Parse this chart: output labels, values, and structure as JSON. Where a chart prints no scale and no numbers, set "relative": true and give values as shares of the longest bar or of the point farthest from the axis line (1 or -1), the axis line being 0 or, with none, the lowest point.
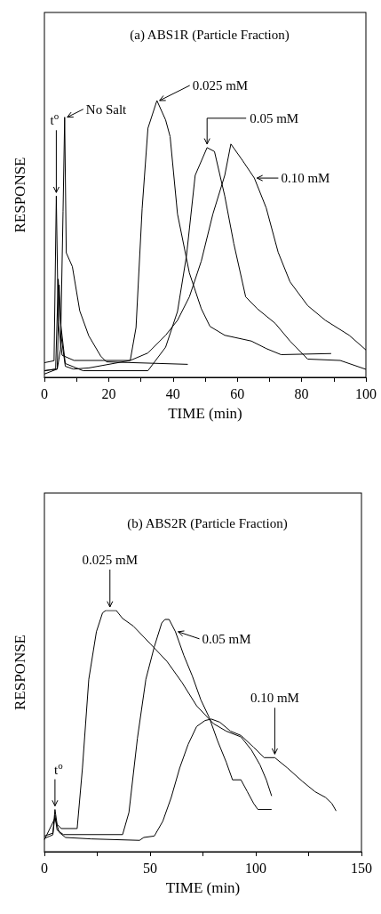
{
  "chart_data": [
    {
      "type": "line",
      "title": "(a) ABS1R (Particle Fraction)",
      "xlabel": "TIME (min)",
      "ylabel": "RESPONSE",
      "relative": true,
      "legend": "top right",
      "grid": false,
      "marker": "none",
      "xlim": [
        0,
        100
      ],
      "xticks": [
        0,
        {
          "value": 10,
          "label": null
        },
        20,
        {
          "value": 30,
          "label": null
        },
        40,
        {
          "value": 50,
          "label": null
        },
        60,
        {
          "value": 70,
          "label": null
        },
        80,
        {
          "value": 90,
          "label": null
        },
        100
      ],
      "annotations": [
        {
          "text": "t$^{o}$",
          "x": 3.7,
          "y": 0.655
        }
      ],
      "series": [
        {
          "name": "No Salt",
          "color": "#000000",
          "x": [
            0,
            4,
            5,
            5.8,
            6.3,
            6.8,
            8.7,
            11,
            13.8,
            17.5,
            19.3,
            44.6
          ],
          "values": [
            0.024,
            0.03,
            0.1,
            0.6,
            0.94,
            0.45,
            0.4,
            0.24,
            0.15,
            0.077,
            0.056,
            0.047
          ]
        },
        {
          "name": "0.025 mM",
          "color": "#000000",
          "x": [
            0,
            3,
            3.7,
            4.3,
            5.5,
            9.2,
            26.7,
            28.5,
            30.4,
            32.2,
            35,
            37.7,
            39.1,
            41.4,
            45.1,
            48.8,
            51.5,
            56.1,
            64.4,
            69,
            73.6,
            89.2
          ],
          "values": [
            0.053,
            0.06,
            0.655,
            0.2,
            0.08,
            0.061,
            0.061,
            0.18,
            0.61,
            0.9,
            1.0,
            0.93,
            0.87,
            0.59,
            0.377,
            0.248,
            0.184,
            0.152,
            0.131,
            0.104,
            0.082,
            0.086
          ]
        },
        {
          "name": "0.05 mM",
          "color": "#000000",
          "x": [
            0,
            3.5,
            4.3,
            5,
            6.5,
            12,
            32.2,
            37.7,
            41.4,
            44.2,
            46.9,
            50.6,
            52.9,
            56.1,
            58.9,
            62.6,
            66.2,
            71.8,
            76.4,
            81.9,
            92,
            100
          ],
          "values": [
            0.024,
            0.03,
            0.355,
            0.2,
            0.05,
            0.024,
            0.024,
            0.109,
            0.238,
            0.44,
            0.73,
            0.83,
            0.816,
            0.655,
            0.484,
            0.291,
            0.248,
            0.195,
            0.131,
            0.066,
            0.061,
            0.029
          ]
        },
        {
          "name": "0.10 mM",
          "color": "#000000",
          "x": [
            0,
            4,
            4.6,
            5.2,
            6.5,
            9,
            13.8,
            26.7,
            32.2,
            37.7,
            41.4,
            45.1,
            48.8,
            52.4,
            56.1,
            58,
            61.6,
            65.3,
            69,
            72.7,
            76.4,
            81.9,
            87.4,
            94.8,
            100
          ],
          "values": [
            0.012,
            0.03,
            0.334,
            0.15,
            0.04,
            0.03,
            0.034,
            0.061,
            0.088,
            0.152,
            0.206,
            0.291,
            0.42,
            0.59,
            0.73,
            0.843,
            0.784,
            0.72,
            0.612,
            0.452,
            0.345,
            0.259,
            0.206,
            0.152,
            0.099
          ]
        }
      ]
    },
    {
      "type": "line",
      "title": "(b) ABS2R (Particle Fraction)",
      "xlabel": "TIME (min)",
      "ylabel": "RESPONSE",
      "relative": true,
      "legend": "right",
      "grid": false,
      "marker": "none",
      "xlim": [
        0,
        150
      ],
      "xticks": [
        0,
        {
          "value": 25,
          "label": null
        },
        50,
        {
          "value": 75,
          "label": null
        },
        100,
        {
          "value": 125,
          "label": null
        },
        150
      ],
      "annotations": [
        {
          "text": "t$^{o}$",
          "x": 5,
          "y": 0.175
        }
      ],
      "series": [
        {
          "name": "0.025 mM",
          "color": "#000000",
          "x": [
            0,
            4,
            5,
            6,
            8,
            15.5,
            18,
            21,
            24.6,
            27.5,
            29,
            34,
            37,
            42,
            50,
            58,
            65,
            72,
            80,
            86,
            93,
            98,
            102,
            105,
            107.5
          ],
          "values": [
            0.065,
            0.077,
            0.175,
            0.114,
            0.096,
            0.096,
            0.347,
            0.715,
            0.912,
            0.99,
            1.0,
            1.0,
            0.967,
            0.936,
            0.863,
            0.789,
            0.703,
            0.605,
            0.531,
            0.5,
            0.476,
            0.421,
            0.36,
            0.298,
            0.231
          ]
        },
        {
          "name": "0.05 mM",
          "color": "#000000",
          "x": [
            0,
            4,
            5,
            6,
            9,
            37,
            40,
            44,
            48,
            52,
            55.5,
            57,
            59,
            62,
            66,
            70,
            74,
            78,
            82,
            86,
            89,
            93,
            96,
            99,
            101,
            107.5
          ],
          "values": [
            0.055,
            0.07,
            0.151,
            0.09,
            0.071,
            0.071,
            0.163,
            0.47,
            0.715,
            0.85,
            0.948,
            0.963,
            0.963,
            0.912,
            0.813,
            0.728,
            0.63,
            0.556,
            0.458,
            0.372,
            0.298,
            0.298,
            0.249,
            0.2,
            0.175,
            0.175
          ]
        },
        {
          "name": "0.10 mM",
          "color": "#000000",
          "x": [
            0,
            5,
            7,
            10,
            22,
            45,
            47,
            52,
            56,
            60,
            64,
            68,
            72,
            76,
            79,
            83,
            88,
            93,
            99,
            104,
            109,
            115,
            122,
            128,
            133,
            136,
            138
          ],
          "values": [
            0.05,
            0.139,
            0.08,
            0.059,
            0.053,
            0.047,
            0.059,
            0.065,
            0.126,
            0.225,
            0.347,
            0.445,
            0.519,
            0.544,
            0.55,
            0.537,
            0.5,
            0.482,
            0.433,
            0.39,
            0.39,
            0.347,
            0.292,
            0.249,
            0.225,
            0.2,
            0.169
          ]
        }
      ]
    }
  ]
}
